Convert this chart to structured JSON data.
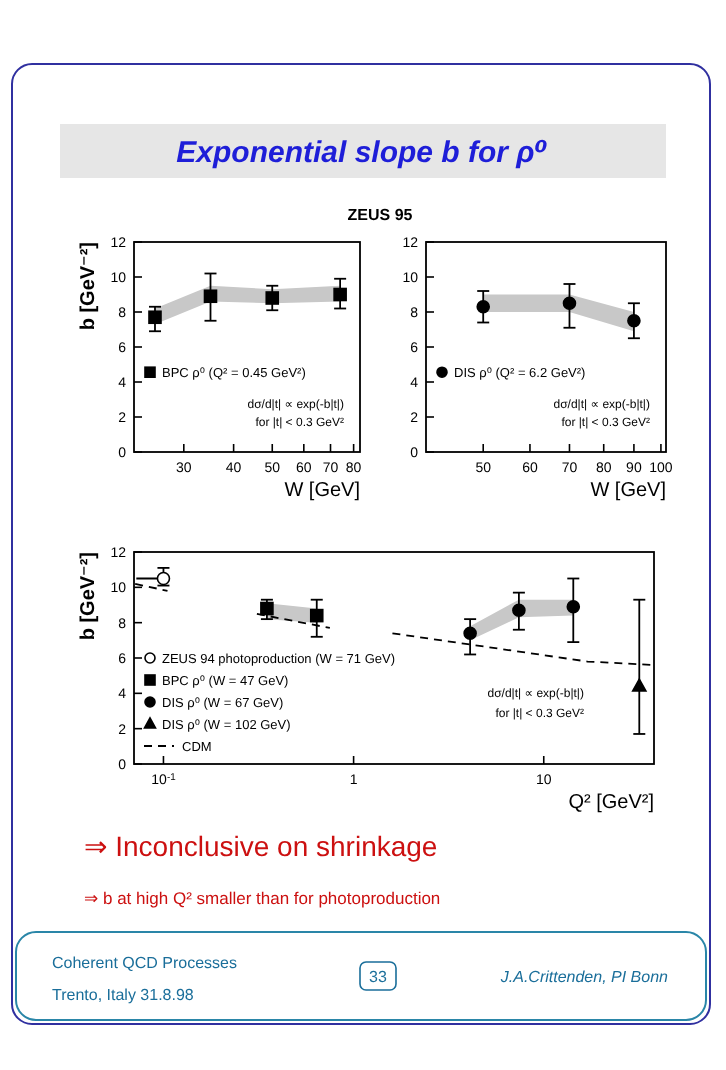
{
  "chart_data": [
    {
      "type": "scatter",
      "title": "Exponential slope b for ρ⁰",
      "subtitle": "ZEUS 95",
      "xlabel": "W [GeV]",
      "ylabel": "b [GeV⁻²]",
      "log": "x",
      "xlim": [
        22.5,
        83
      ],
      "xticks": [
        30,
        40,
        50,
        60,
        70,
        80
      ],
      "ylim": [
        0,
        12
      ],
      "yticks": [
        0,
        2,
        4,
        6,
        8,
        10,
        12
      ],
      "legend": "left",
      "annotations": [
        "dσ/d|t| ∝ exp(-b|t|)",
        "for |t| < 0.3 GeV²"
      ],
      "series": [
        {
          "name": "BPC ρ⁰ (Q² = 0.45 GeV²)",
          "color": "#000000",
          "marker": "square",
          "x": [
            25.4,
            35,
            50,
            74
          ],
          "values": [
            7.7,
            8.9,
            8.8,
            9.0
          ],
          "errors": [
            [
              6.9,
              8.3
            ],
            [
              7.5,
              10.2
            ],
            [
              8.1,
              9.5
            ],
            [
              8.2,
              9.9
            ]
          ],
          "lower": [
            7.3,
            8.6,
            8.5,
            8.6
          ],
          "upper": [
            8.2,
            9.5,
            9.3,
            9.5
          ]
        }
      ]
    },
    {
      "type": "scatter",
      "xlabel": "W [GeV]",
      "log": "x",
      "xlim": [
        40,
        102
      ],
      "xticks": [
        50,
        60,
        70,
        80,
        90,
        100
      ],
      "ylim": [
        0,
        12
      ],
      "yticks": [
        0,
        2,
        4,
        6,
        8,
        10,
        12
      ],
      "legend": "left",
      "annotations": [
        "dσ/d|t| ∝ exp(-b|t|)",
        "for |t| < 0.3 GeV²"
      ],
      "series": [
        {
          "name": "DIS ρ⁰ (Q² = 6.2 GeV²)",
          "color": "#000000",
          "marker": "circle",
          "x": [
            50,
            70,
            90
          ],
          "values": [
            8.3,
            8.5,
            7.5
          ],
          "errors": [
            [
              7.4,
              9.2
            ],
            [
              7.1,
              9.6
            ],
            [
              6.5,
              8.5
            ]
          ],
          "lower": [
            8.0,
            8.0,
            6.9
          ],
          "upper": [
            9.0,
            9.0,
            8.0
          ]
        }
      ]
    },
    {
      "type": "scatter",
      "xlabel": "Q² [GeV²]",
      "ylabel": "b [GeV⁻²]",
      "log": "x",
      "xlim": [
        0.07,
        38
      ],
      "xticks": [
        {
          "value": 0.1,
          "label": "10$^{-1}$"
        },
        {
          "value": 1,
          "label": "1"
        },
        {
          "value": 10,
          "label": "10"
        }
      ],
      "ylim": [
        0,
        12
      ],
      "yticks": [
        0,
        2,
        4,
        6,
        8,
        10,
        12
      ],
      "legend": "bottom left",
      "annotations": [
        "dσ/d|t| ∝ exp(-b|t|)",
        "for |t| < 0.3 GeV²",
        "⇒ Inconclusive on shrinkage",
        "⇒ b at high Q² smaller than for photoproduction",
        "Coherent QCD Processes",
        "Trento, Italy   31.8.98",
        "33",
        "J.A.Crittenden, PI Bonn"
      ],
      "series": [
        {
          "name": "ZEUS 94 photoproduction (W = 71 GeV)",
          "color": "#ffffff",
          "marker": "circle",
          "x": [
            0.1
          ],
          "values": [
            10.5
          ],
          "errors": [
            [
              10.1,
              11.1
            ]
          ],
          "xerrors": [
            [
              0.072,
              0.106
            ]
          ]
        },
        {
          "name": "BPC ρ⁰ (W = 47 GeV)",
          "color": "#000000",
          "marker": "square",
          "x": [
            0.35,
            0.64
          ],
          "values": [
            8.8,
            8.4
          ],
          "errors": [
            [
              8.2,
              9.3
            ],
            [
              7.2,
              9.3
            ]
          ],
          "lower": [
            8.2,
            8.0
          ],
          "upper": [
            9.1,
            8.8
          ]
        },
        {
          "name": "DIS ρ⁰ (W = 67 GeV)",
          "color": "#000000",
          "marker": "circle",
          "x": [
            4.1,
            7.4,
            14.3
          ],
          "values": [
            7.4,
            8.7,
            8.9
          ],
          "errors": [
            [
              6.2,
              8.2
            ],
            [
              7.6,
              9.7
            ],
            [
              6.9,
              10.5
            ]
          ],
          "lower": [
            7.0,
            8.3,
            8.4
          ],
          "upper": [
            7.8,
            9.3,
            9.3
          ]
        },
        {
          "name": "DIS ρ⁰ (W = 102 GeV)",
          "color": "#000000",
          "marker": "triangle",
          "x": [
            31.8
          ],
          "values": [
            4.4
          ],
          "errors": [
            [
              1.7,
              9.3
            ]
          ]
        },
        {
          "name": "CDM",
          "color": "#000000",
          "type": "line",
          "line_style": "dashed",
          "x": [
            0.071,
            0.105,
            0.2,
            0.31,
            0.75,
            1.1,
            1.6,
            17,
            38
          ],
          "values": [
            10.2,
            9.8,
            null,
            8.5,
            7.7,
            null,
            7.4,
            5.8,
            5.6
          ]
        }
      ]
    }
  ]
}
